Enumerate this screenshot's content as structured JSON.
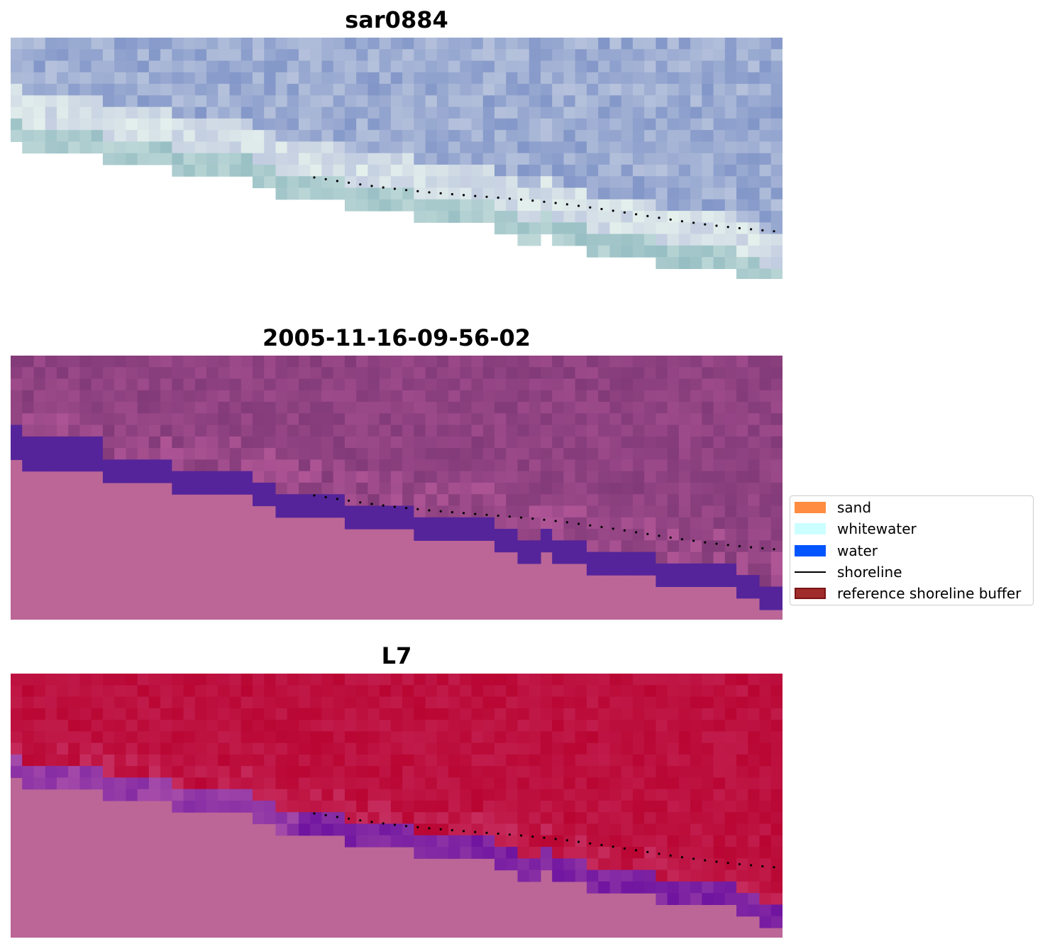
{
  "panels": [
    {
      "title": "sar0884",
      "style": "rgb"
    },
    {
      "title": "2005-11-16-09-56-02",
      "style": "classified"
    },
    {
      "title": "L7",
      "style": "falsecolor"
    }
  ],
  "legend": {
    "items": [
      {
        "label": "sand",
        "color": "#ff8c40",
        "kind": "patch"
      },
      {
        "label": "whitewater",
        "color": "#ccffff",
        "kind": "patch"
      },
      {
        "label": "water",
        "color": "#0055ff",
        "kind": "patch"
      },
      {
        "label": "shoreline",
        "color": "#000000",
        "kind": "line"
      },
      {
        "label": "reference shoreline buffer",
        "color": "#a02c2c",
        "edge": "#7a1515",
        "kind": "patch"
      }
    ]
  },
  "colors": {
    "land": "#bb6697",
    "classified_water": "#55249a",
    "shoreline": "#000000"
  }
}
